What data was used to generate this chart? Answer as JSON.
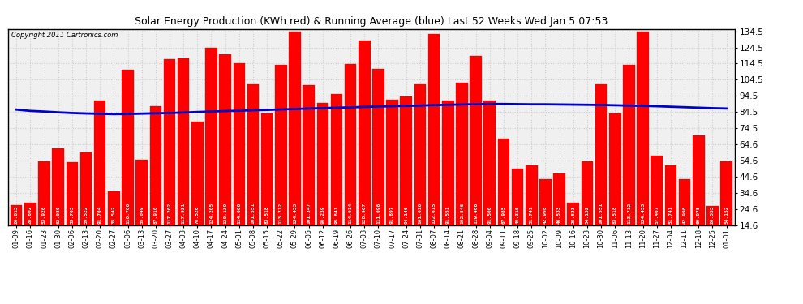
{
  "title": "Solar Energy Production (KWh red) & Running Average (blue) Last 52 Weeks Wed Jan 5 07:53",
  "copyright": "Copyright 2011 Cartronics.com",
  "bar_color": "#FF0000",
  "line_color": "#0000CC",
  "bg_color": "#FFFFFF",
  "plot_bg": "#F0F0F0",
  "grid_color": "#CCCCCC",
  "ylim_min": 14.6,
  "ylim_max": 134.5,
  "yticks": [
    14.6,
    24.6,
    34.6,
    44.6,
    54.6,
    64.6,
    74.5,
    84.5,
    94.5,
    104.5,
    114.5,
    124.5,
    134.5
  ],
  "dates": [
    "01-09",
    "01-16",
    "01-23",
    "01-30",
    "02-06",
    "02-13",
    "02-20",
    "02-27",
    "03-06",
    "03-13",
    "03-20",
    "03-27",
    "04-03",
    "04-10",
    "04-17",
    "04-24",
    "05-01",
    "05-08",
    "05-15",
    "05-22",
    "05-29",
    "06-05",
    "06-12",
    "06-19",
    "06-26",
    "07-03",
    "07-10",
    "07-17",
    "07-24",
    "07-31",
    "08-07",
    "08-14",
    "08-21",
    "08-28",
    "09-04",
    "09-11",
    "09-18",
    "09-25",
    "10-02",
    "10-09",
    "10-16",
    "10-23",
    "10-30",
    "11-06",
    "11-13",
    "11-20",
    "11-27",
    "12-04",
    "12-11",
    "12-18",
    "12-25",
    "01-01"
  ],
  "values": [
    26.813,
    28.602,
    53.926,
    62.08,
    53.703,
    59.522,
    91.764,
    35.542,
    110.706,
    55.049,
    87.91,
    117.202,
    117.921,
    78.526,
    124.205,
    120.139,
    114.606,
    101.551,
    83.518,
    113.712,
    134.453,
    101.347,
    90.239,
    95.841,
    114.014,
    128.907,
    111.096,
    91.897,
    94.146,
    101.616,
    132.615,
    91.551,
    102.546,
    119.466,
    91.5,
    67.985,
    49.316,
    51.741,
    42.998,
    46.533,
    28.533,
    54.152,
    101.551,
    83.518,
    113.712,
    134.453,
    57.467,
    51.741,
    42.998,
    69.978,
    26.533,
    54.152
  ],
  "running_avg": [
    86.0,
    85.2,
    84.8,
    84.3,
    83.9,
    83.6,
    83.4,
    83.2,
    83.3,
    83.5,
    83.7,
    83.9,
    84.2,
    84.5,
    84.8,
    85.1,
    85.3,
    85.6,
    85.8,
    86.1,
    86.4,
    86.7,
    86.9,
    87.2,
    87.4,
    87.7,
    87.9,
    88.1,
    88.3,
    88.5,
    88.8,
    89.0,
    89.2,
    89.4,
    89.5,
    89.5,
    89.4,
    89.3,
    89.3,
    89.2,
    89.1,
    89.0,
    88.9,
    88.7,
    88.5,
    88.3,
    88.1,
    87.8,
    87.5,
    87.2,
    86.9,
    86.7
  ]
}
